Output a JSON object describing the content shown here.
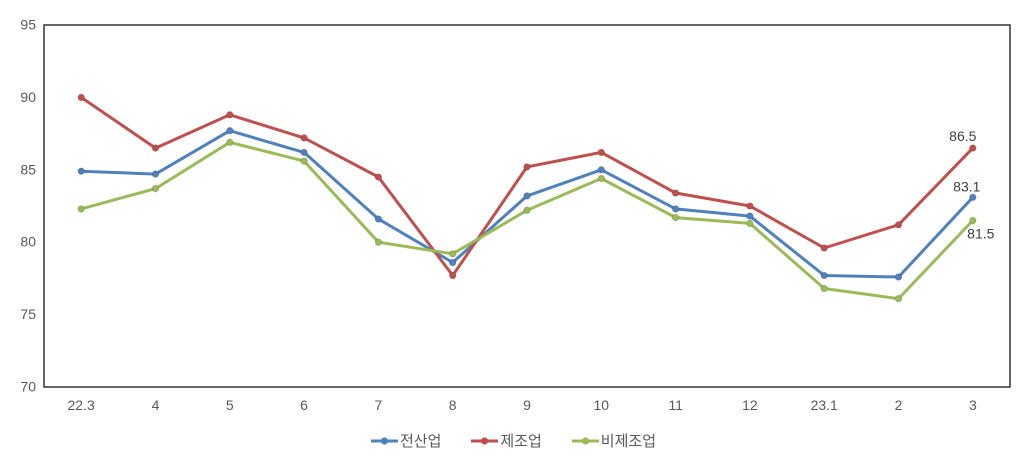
{
  "chart_data": {
    "type": "line",
    "categories": [
      "22.3",
      "4",
      "5",
      "6",
      "7",
      "8",
      "9",
      "10",
      "11",
      "12",
      "23.1",
      "2",
      "3"
    ],
    "series": [
      {
        "name": "전산업",
        "color": "#4f81bd",
        "values": [
          84.9,
          84.7,
          87.7,
          86.2,
          81.6,
          78.6,
          83.2,
          85.0,
          82.3,
          81.8,
          77.7,
          77.6,
          83.1
        ],
        "last_value_label": "83.1"
      },
      {
        "name": "제조업",
        "color": "#c0504d",
        "values": [
          90.0,
          86.5,
          88.8,
          87.2,
          84.5,
          77.7,
          85.2,
          86.2,
          83.4,
          82.5,
          79.6,
          81.2,
          86.5
        ],
        "last_value_label": "86.5"
      },
      {
        "name": "비제조업",
        "color": "#9bbb59",
        "values": [
          82.3,
          83.7,
          86.9,
          85.6,
          80.0,
          79.2,
          82.2,
          84.4,
          81.7,
          81.3,
          76.8,
          76.1,
          81.5
        ],
        "last_value_label": "81.5"
      }
    ],
    "ylim": [
      70,
      95
    ],
    "ytick_step": 5,
    "ytick_labels": [
      "70",
      "75",
      "80",
      "85",
      "90",
      "95"
    ],
    "grid": false,
    "legend_position": "bottom",
    "colors": {
      "axis_line": "#333333",
      "tick_label": "#595959",
      "data_label": "#404040",
      "legend_label": "#595959",
      "background": "#ffffff"
    }
  }
}
